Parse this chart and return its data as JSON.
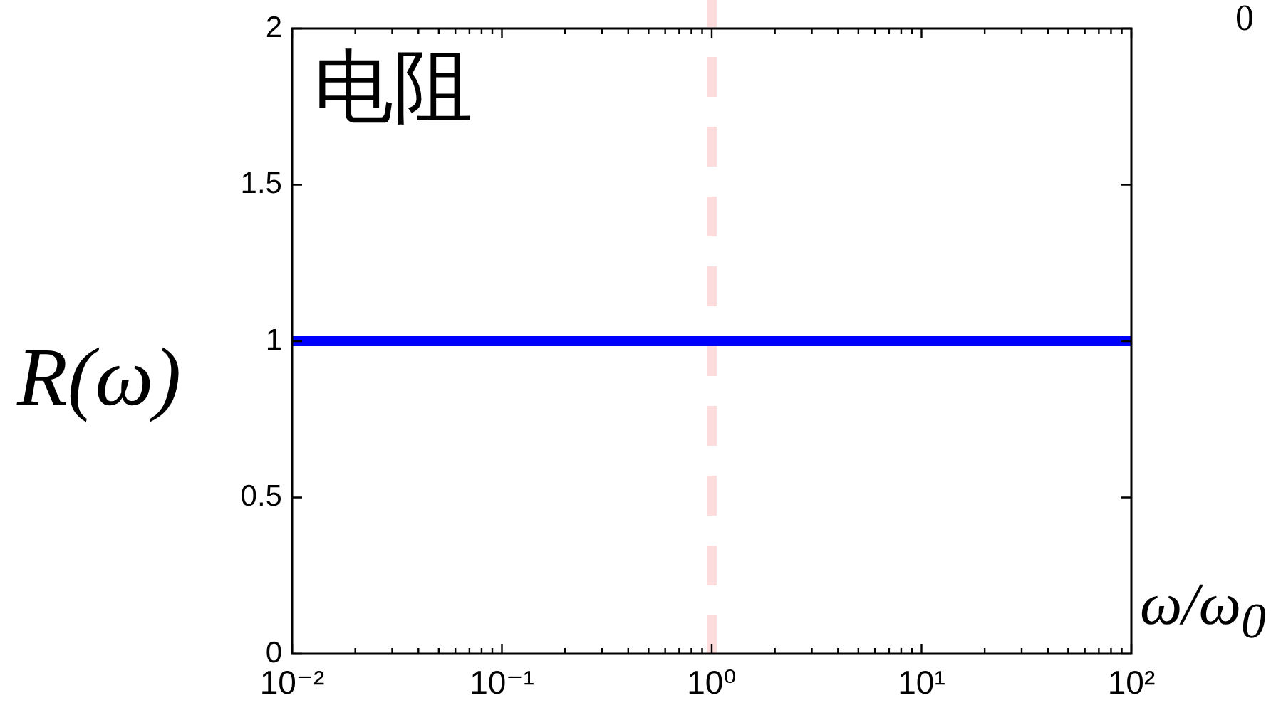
{
  "chart_data": {
    "type": "line",
    "xlabel": "ω/ω$_{0}$",
    "ylabel": "R(ω)",
    "annotations": [
      "电阻",
      "0"
    ],
    "x": [
      0.01,
      100
    ],
    "series": [
      {
        "color": "#0000ff",
        "values": [
          1,
          1
        ]
      }
    ],
    "log": "x",
    "xlim": [
      0.01,
      100
    ],
    "xticks": [
      {
        "value": 0.01,
        "label": "10⁻²"
      },
      {
        "value": 0.02,
        "label": null
      },
      {
        "value": 0.03,
        "label": null
      },
      {
        "value": 0.04,
        "label": null
      },
      {
        "value": 0.05,
        "label": null
      },
      {
        "value": 0.06,
        "label": null
      },
      {
        "value": 0.07,
        "label": null
      },
      {
        "value": 0.08,
        "label": null
      },
      {
        "value": 0.09,
        "label": null
      },
      {
        "value": 0.1,
        "label": "10⁻¹"
      },
      {
        "value": 0.2,
        "label": null
      },
      {
        "value": 0.3,
        "label": null
      },
      {
        "value": 0.4,
        "label": null
      },
      {
        "value": 0.5,
        "label": null
      },
      {
        "value": 0.6,
        "label": null
      },
      {
        "value": 0.7,
        "label": null
      },
      {
        "value": 0.8,
        "label": null
      },
      {
        "value": 0.9,
        "label": null
      },
      {
        "value": 1,
        "label": "10⁰"
      },
      {
        "value": 2,
        "label": null
      },
      {
        "value": 3,
        "label": null
      },
      {
        "value": 4,
        "label": null
      },
      {
        "value": 5,
        "label": null
      },
      {
        "value": 6,
        "label": null
      },
      {
        "value": 7,
        "label": null
      },
      {
        "value": 8,
        "label": null
      },
      {
        "value": 9,
        "label": null
      },
      {
        "value": 10,
        "label": "10¹"
      },
      {
        "value": 20,
        "label": null
      },
      {
        "value": 30,
        "label": null
      },
      {
        "value": 40,
        "label": null
      },
      {
        "value": 50,
        "label": null
      },
      {
        "value": 60,
        "label": null
      },
      {
        "value": 70,
        "label": null
      },
      {
        "value": 80,
        "label": null
      },
      {
        "value": 90,
        "label": null
      },
      {
        "value": 100,
        "label": "10²"
      }
    ],
    "ylim": [
      0,
      2
    ],
    "yticks": [
      0,
      0.5,
      1,
      1.5,
      2
    ],
    "ref_lines": [
      {
        "axis": "x",
        "value": 1,
        "color": "#fcdcdc",
        "line_style": "dashed"
      }
    ],
    "grid": false,
    "marker": "none",
    "line_style": "solid"
  }
}
